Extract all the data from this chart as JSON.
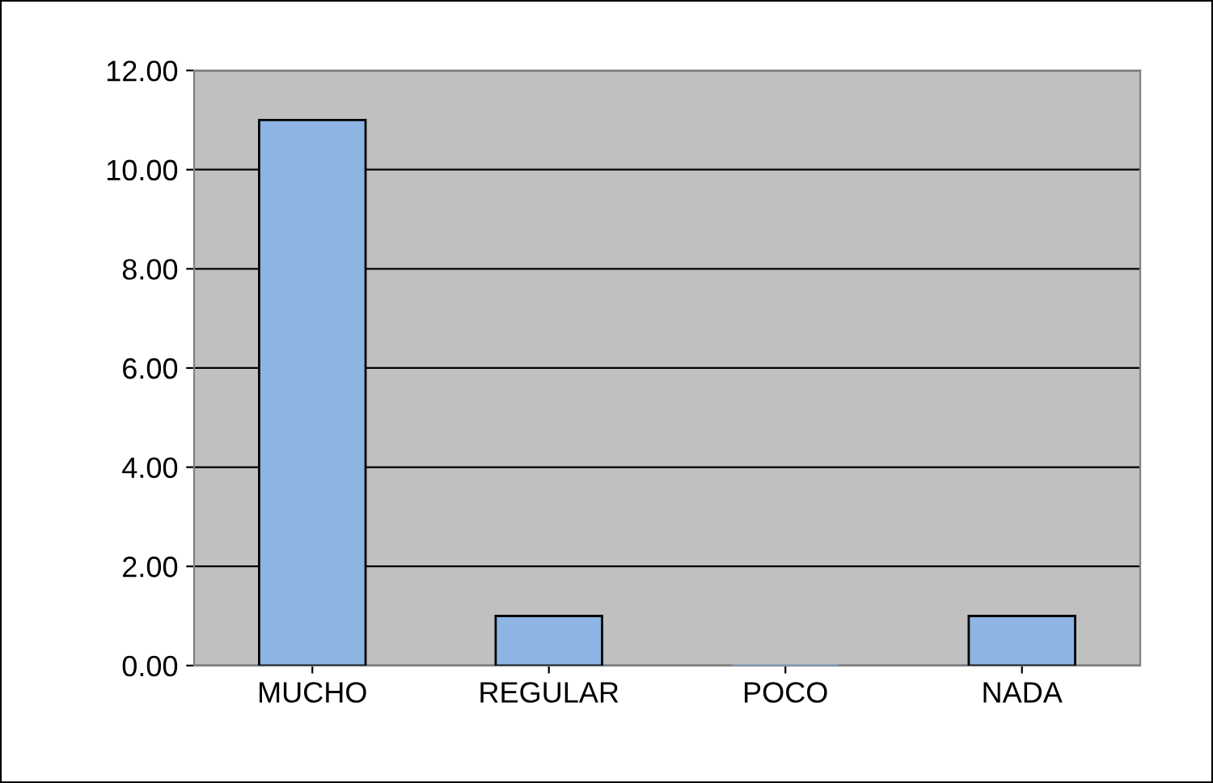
{
  "chart_data": {
    "type": "bar",
    "categories": [
      "MUCHO",
      "REGULAR",
      "POCO",
      "NADA"
    ],
    "values": [
      11,
      1,
      0,
      1
    ],
    "color": "#8db4e2",
    "ylim": [
      0,
      12
    ],
    "yticks": [
      {
        "value": 0,
        "label": "0.00"
      },
      {
        "value": 2,
        "label": "2.00"
      },
      {
        "value": 4,
        "label": "4.00"
      },
      {
        "value": 6,
        "label": "6.00"
      },
      {
        "value": 8,
        "label": "8.00"
      },
      {
        "value": 10,
        "label": "10.00"
      },
      {
        "value": 12,
        "label": "12.00"
      }
    ],
    "grid": "y"
  }
}
